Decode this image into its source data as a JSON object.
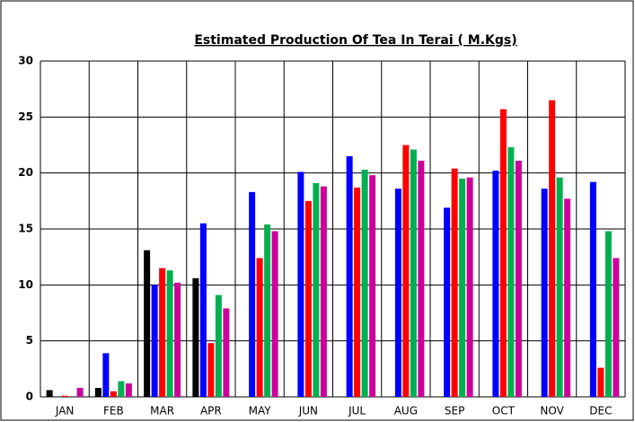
{
  "chart_data": {
    "type": "bar",
    "title": "Estimated Production Of Tea In Terai ( M.Kgs)",
    "categories": [
      "JAN",
      "FEB",
      "MAR",
      "APR",
      "MAY",
      "JUN",
      "JUL",
      "AUG",
      "SEP",
      "OCT",
      "NOV",
      "DEC"
    ],
    "series": [
      {
        "color": "#000000",
        "values": [
          0.6,
          0.8,
          13.1,
          10.6,
          null,
          null,
          null,
          null,
          null,
          null,
          null,
          null
        ]
      },
      {
        "color": "#0000ff",
        "values": [
          null,
          3.9,
          10.0,
          15.5,
          18.3,
          20.1,
          21.5,
          18.6,
          16.9,
          20.2,
          18.6,
          19.2
        ]
      },
      {
        "color": "#ff0000",
        "values": [
          0.1,
          0.5,
          11.5,
          4.8,
          12.4,
          17.5,
          18.7,
          22.5,
          20.4,
          25.7,
          26.5,
          2.6
        ]
      },
      {
        "color": "#00b050",
        "values": [
          null,
          1.4,
          11.3,
          9.1,
          15.4,
          19.1,
          20.3,
          22.1,
          19.5,
          22.3,
          19.6,
          14.8
        ]
      },
      {
        "color": "#cc0099",
        "values": [
          0.8,
          1.2,
          10.2,
          7.9,
          14.8,
          18.8,
          19.8,
          21.1,
          19.6,
          21.1,
          17.7,
          12.4
        ]
      }
    ],
    "ylim": [
      0,
      30
    ],
    "yticks": [
      0,
      5,
      10,
      15,
      20,
      25,
      30
    ],
    "grid": true
  }
}
